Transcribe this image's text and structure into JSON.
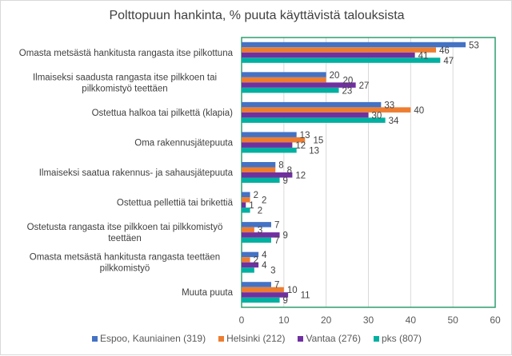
{
  "chart_data": {
    "type": "bar",
    "orientation": "horizontal",
    "title": "Polttopuun hankinta, % puuta käyttävistä talouksista",
    "categories": [
      [
        "Omasta metsästä hankitusta rangasta itse pilkottuna"
      ],
      [
        "Ilmaiseksi saadusta rangasta itse pilkkoen tai",
        "pilkkomistyö teettäen"
      ],
      [
        "Ostettua halkoa tai pilkettä (klapia)"
      ],
      [
        "Oma rakennusjätepuuta"
      ],
      [
        "Ilmaiseksi saatua rakennus- ja sahausjätepuuta"
      ],
      [
        "Ostettua pellettiä tai brikettiä"
      ],
      [
        "Ostetusta rangasta itse pilkkoen tai pilkkomistyö",
        "teettäen"
      ],
      [
        "Omasta metsästä hankitusta rangasta teettäen",
        "pilkkomistyö"
      ],
      [
        "Muuta puuta"
      ]
    ],
    "series": [
      {
        "name": "Espoo, Kauniainen (319)",
        "color": "#4472C4",
        "values": [
          53,
          20,
          33,
          13,
          8,
          2,
          7,
          4,
          7
        ]
      },
      {
        "name": "Helsinki (212)",
        "color": "#ED7D31",
        "values": [
          46,
          20,
          40,
          15,
          8,
          2,
          3,
          2,
          10
        ]
      },
      {
        "name": "Vantaa (276)",
        "color": "#7030A0",
        "values": [
          41,
          27,
          30,
          12,
          12,
          1,
          9,
          4,
          11
        ]
      },
      {
        "name": "pks (807)",
        "color": "#00B0A0",
        "values": [
          47,
          23,
          34,
          13,
          9,
          2,
          7,
          3,
          9
        ]
      }
    ],
    "xlim": [
      0,
      60
    ],
    "xticks": [
      "0",
      "10",
      "20",
      "30",
      "40",
      "50",
      "60"
    ],
    "grid": true,
    "legend": "bottom",
    "frame_color": "#2E9E6E"
  }
}
